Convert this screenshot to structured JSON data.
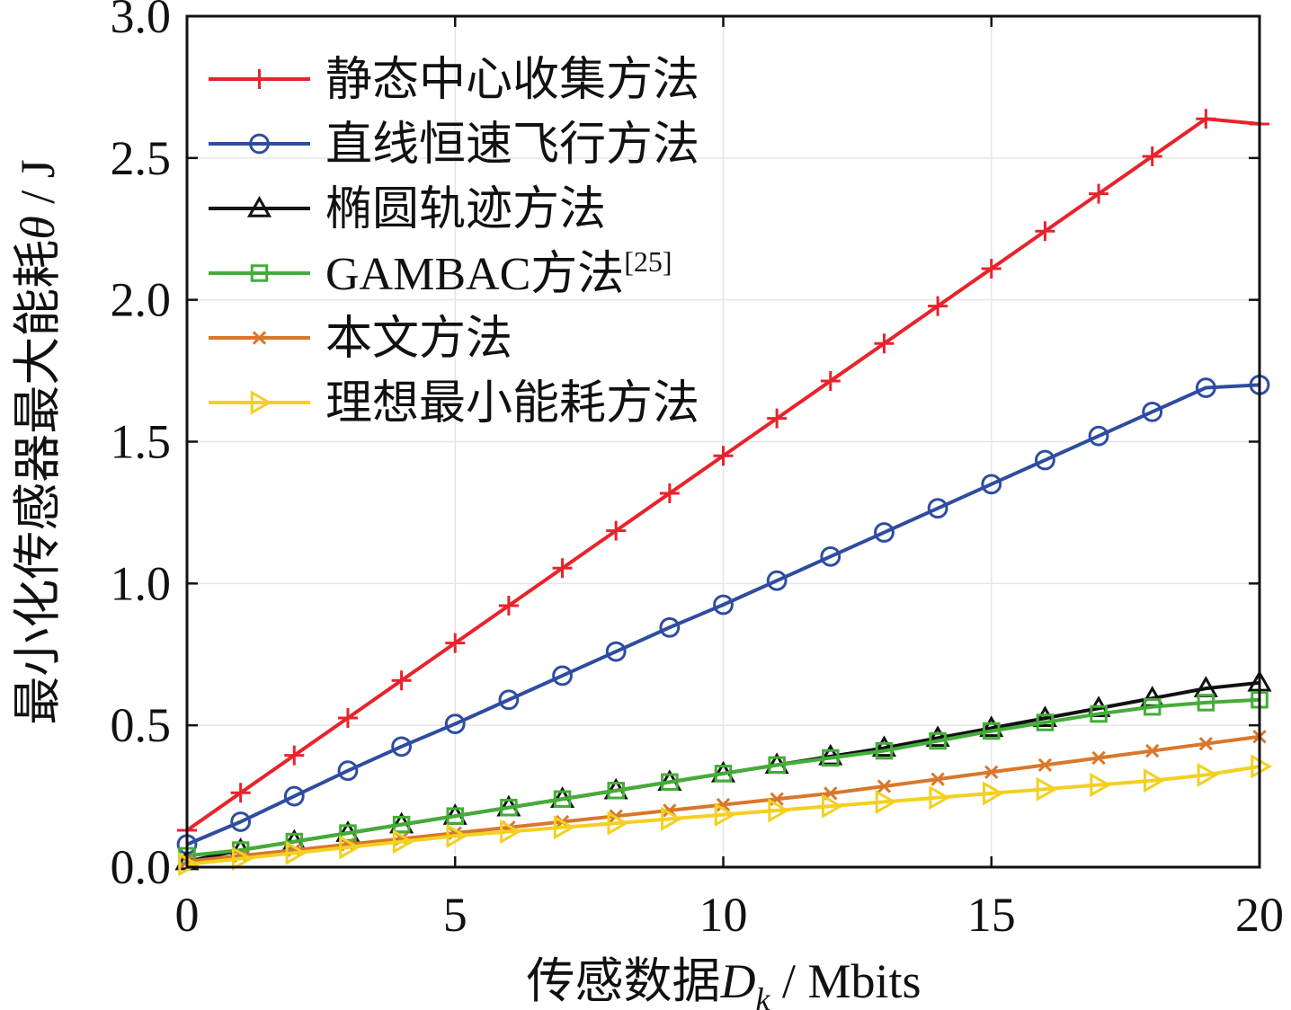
{
  "chart_data": {
    "type": "line",
    "title": "",
    "xlabel": {
      "prefix": "传感数据",
      "var": "D",
      "sub": "k",
      "suffix": " / Mbits"
    },
    "ylabel": {
      "prefix": "最小化传感器最大能耗",
      "var": "θ",
      "suffix": " / J"
    },
    "xlim": [
      0,
      20
    ],
    "ylim": [
      0,
      3.0
    ],
    "xticks": [
      0,
      5,
      10,
      15,
      20
    ],
    "xtick_labels": [
      "0",
      "5",
      "10",
      "15",
      "20"
    ],
    "yticks": [
      0,
      0.5,
      1.0,
      1.5,
      2.0,
      2.5,
      3.0
    ],
    "ytick_labels": [
      "0.0",
      "0.5",
      "1.0",
      "1.5",
      "2.0",
      "2.5",
      "3.0"
    ],
    "grid": true,
    "legend_position": "top-left",
    "x": [
      0,
      1,
      2,
      3,
      4,
      5,
      6,
      7,
      8,
      9,
      10,
      11,
      12,
      13,
      14,
      15,
      16,
      17,
      18,
      19,
      20
    ],
    "series": [
      {
        "name": "静态中心收集方法",
        "color": "#e8232b",
        "marker": "plus",
        "values": [
          0.13,
          0.262,
          0.394,
          0.526,
          0.658,
          0.79,
          0.922,
          1.054,
          1.186,
          1.318,
          1.45,
          1.582,
          1.714,
          1.846,
          1.978,
          2.11,
          2.242,
          2.374,
          2.506,
          2.638,
          2.62
        ]
      },
      {
        "name": "直线恒速飞行方法",
        "color": "#2e4da0",
        "marker": "circle",
        "values": [
          0.08,
          0.16,
          0.25,
          0.34,
          0.425,
          0.505,
          0.59,
          0.675,
          0.76,
          0.845,
          0.925,
          1.01,
          1.095,
          1.18,
          1.265,
          1.35,
          1.435,
          1.52,
          1.605,
          1.69,
          1.7
        ]
      },
      {
        "name": "椭圆轨迹方法",
        "color": "#111111",
        "marker": "triangle",
        "values": [
          0.02,
          0.06,
          0.09,
          0.12,
          0.15,
          0.18,
          0.21,
          0.24,
          0.27,
          0.3,
          0.33,
          0.36,
          0.39,
          0.42,
          0.455,
          0.49,
          0.525,
          0.56,
          0.595,
          0.63,
          0.65
        ]
      },
      {
        "name": "GAMBAC方法",
        "name_sup": "[25]",
        "color": "#44ad38",
        "marker": "square",
        "values": [
          0.04,
          0.06,
          0.09,
          0.12,
          0.15,
          0.18,
          0.21,
          0.24,
          0.27,
          0.3,
          0.33,
          0.36,
          0.385,
          0.41,
          0.445,
          0.48,
          0.51,
          0.54,
          0.565,
          0.58,
          0.59
        ]
      },
      {
        "name": "本文方法",
        "color": "#d9772b",
        "marker": "x",
        "values": [
          0.02,
          0.04,
          0.06,
          0.08,
          0.1,
          0.12,
          0.14,
          0.16,
          0.18,
          0.2,
          0.22,
          0.24,
          0.26,
          0.285,
          0.31,
          0.335,
          0.36,
          0.385,
          0.41,
          0.435,
          0.46
        ]
      },
      {
        "name": "理想最小能耗方法",
        "color": "#f3d021",
        "marker": "triangle-right",
        "values": [
          0.01,
          0.03,
          0.05,
          0.07,
          0.09,
          0.11,
          0.125,
          0.14,
          0.155,
          0.17,
          0.185,
          0.2,
          0.215,
          0.23,
          0.245,
          0.26,
          0.275,
          0.29,
          0.305,
          0.325,
          0.355
        ]
      }
    ]
  }
}
